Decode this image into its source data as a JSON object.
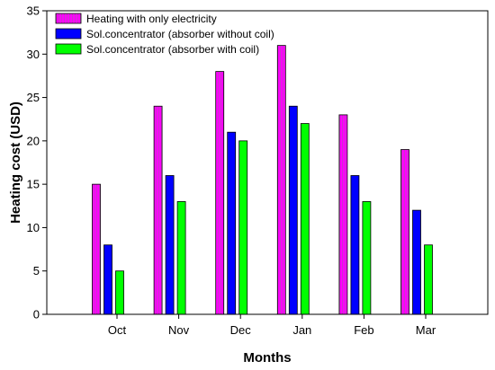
{
  "chart_data": {
    "type": "bar",
    "xlabel": "Months",
    "ylabel": "Heating cost (USD)",
    "ylim": [
      0,
      35
    ],
    "yticks": [
      0,
      5,
      10,
      15,
      20,
      25,
      30,
      35
    ],
    "grid": false,
    "legend_placement": "top-left",
    "categories": [
      "Oct",
      "Nov",
      "Dec",
      "Jan",
      "Feb",
      "Mar"
    ],
    "series": [
      {
        "name": "Heating with only electricity",
        "color": "#ff00ff",
        "pattern": "vertical-stripes",
        "values": [
          15,
          24,
          28,
          31,
          23,
          19
        ]
      },
      {
        "name": "Sol.concentrator (absorber without coil)",
        "color": "#0000ff",
        "values": [
          8,
          16,
          21,
          24,
          16,
          12
        ]
      },
      {
        "name": "Sol.concentrator (absorber with coil)",
        "color": "#00ff00",
        "values": [
          5,
          13,
          20,
          22,
          13,
          8
        ]
      }
    ]
  }
}
